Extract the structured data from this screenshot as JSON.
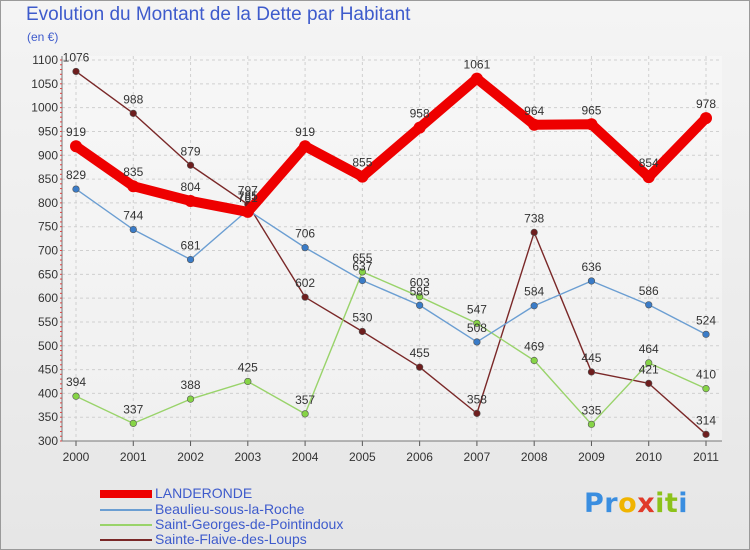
{
  "title": "Evolution du Montant de la Dette par Habitant",
  "unit_label": "(en €)",
  "brand": {
    "letters": [
      "P",
      "r",
      "o",
      "x",
      "i",
      "t",
      "i"
    ],
    "colors": [
      "#3a8ee0",
      "#3a8ee0",
      "#f0b400",
      "#e03a2a",
      "#8cc21a",
      "#8cc21a",
      "#3a8ee0"
    ],
    "accessible_name": "Proxiti"
  },
  "chart_data": {
    "type": "line",
    "title": "Evolution du Montant de la Dette par Habitant",
    "ylabel": "(en €)",
    "xlabel": "",
    "x": [
      "2000",
      "2001",
      "2002",
      "2003",
      "2004",
      "2005",
      "2006",
      "2007",
      "2008",
      "2009",
      "2010",
      "2011"
    ],
    "ylim": [
      300,
      1100
    ],
    "yticks": [
      300,
      350,
      400,
      450,
      500,
      550,
      600,
      650,
      700,
      750,
      800,
      850,
      900,
      950,
      1000,
      1050,
      1100
    ],
    "grid": true,
    "legend_position": "bottom-left",
    "series": [
      {
        "name": "LANDERONDE",
        "color": "#ee0000",
        "point_color": "#ee0000",
        "emphasis": true,
        "values": [
          919,
          835,
          804,
          781,
          919,
          855,
          958,
          1061,
          964,
          965,
          854,
          978
        ]
      },
      {
        "name": "Beaulieu-sous-la-Roche",
        "color": "#6b9ed2",
        "point_color": "#3a7cc8",
        "emphasis": false,
        "values": [
          829,
          744,
          681,
          785,
          706,
          637,
          585,
          508,
          584,
          636,
          586,
          524
        ]
      },
      {
        "name": "Saint-Georges-de-Pointindoux",
        "color": "#99d36a",
        "point_color": "#86d446",
        "emphasis": false,
        "values": [
          394,
          337,
          388,
          425,
          357,
          655,
          603,
          547,
          469,
          335,
          464,
          410
        ]
      },
      {
        "name": "Sainte-Flaive-des-Loups",
        "color": "#7a2828",
        "point_color": "#6e1e1e",
        "emphasis": false,
        "values": [
          1076,
          988,
          879,
          797,
          602,
          530,
          455,
          358,
          738,
          445,
          421,
          314
        ]
      }
    ],
    "data_labels": [
      {
        "series": 0,
        "index": 0,
        "text": "919"
      },
      {
        "series": 0,
        "index": 1,
        "text": "835"
      },
      {
        "series": 0,
        "index": 2,
        "text": "804"
      },
      {
        "series": 0,
        "index": 3,
        "text": "781"
      },
      {
        "series": 0,
        "index": 4,
        "text": "919"
      },
      {
        "series": 0,
        "index": 5,
        "text": "855"
      },
      {
        "series": 0,
        "index": 6,
        "text": "958"
      },
      {
        "series": 0,
        "index": 7,
        "text": "1061"
      },
      {
        "series": 0,
        "index": 8,
        "text": "964"
      },
      {
        "series": 0,
        "index": 9,
        "text": "965"
      },
      {
        "series": 0,
        "index": 10,
        "text": "854"
      },
      {
        "series": 0,
        "index": 11,
        "text": "978"
      },
      {
        "series": 1,
        "index": 0,
        "text": "829"
      },
      {
        "series": 1,
        "index": 1,
        "text": "744"
      },
      {
        "series": 1,
        "index": 2,
        "text": "681"
      },
      {
        "series": 1,
        "index": 3,
        "text": "785"
      },
      {
        "series": 1,
        "index": 4,
        "text": "706"
      },
      {
        "series": 1,
        "index": 5,
        "text": "637"
      },
      {
        "series": 1,
        "index": 6,
        "text": "585"
      },
      {
        "series": 1,
        "index": 7,
        "text": "508"
      },
      {
        "series": 1,
        "index": 8,
        "text": "584"
      },
      {
        "series": 1,
        "index": 9,
        "text": "636"
      },
      {
        "series": 1,
        "index": 10,
        "text": "586"
      },
      {
        "series": 1,
        "index": 11,
        "text": "524"
      },
      {
        "series": 2,
        "index": 0,
        "text": "394"
      },
      {
        "series": 2,
        "index": 1,
        "text": "337"
      },
      {
        "series": 2,
        "index": 2,
        "text": "388"
      },
      {
        "series": 2,
        "index": 3,
        "text": "425"
      },
      {
        "series": 2,
        "index": 4,
        "text": "357"
      },
      {
        "series": 2,
        "index": 5,
        "text": "655"
      },
      {
        "series": 2,
        "index": 6,
        "text": "603"
      },
      {
        "series": 2,
        "index": 7,
        "text": "547"
      },
      {
        "series": 2,
        "index": 8,
        "text": "469"
      },
      {
        "series": 2,
        "index": 9,
        "text": "335"
      },
      {
        "series": 2,
        "index": 10,
        "text": "464"
      },
      {
        "series": 2,
        "index": 11,
        "text": "410"
      },
      {
        "series": 3,
        "index": 0,
        "text": "1076"
      },
      {
        "series": 3,
        "index": 1,
        "text": "988"
      },
      {
        "series": 3,
        "index": 2,
        "text": "879"
      },
      {
        "series": 3,
        "index": 3,
        "text": "797"
      },
      {
        "series": 3,
        "index": 4,
        "text": "602"
      },
      {
        "series": 3,
        "index": 5,
        "text": "530"
      },
      {
        "series": 3,
        "index": 6,
        "text": "455"
      },
      {
        "series": 3,
        "index": 7,
        "text": "358"
      },
      {
        "series": 3,
        "index": 8,
        "text": "738"
      },
      {
        "series": 3,
        "index": 9,
        "text": "445"
      },
      {
        "series": 3,
        "index": 10,
        "text": "421"
      },
      {
        "series": 3,
        "index": 11,
        "text": "314"
      }
    ]
  }
}
